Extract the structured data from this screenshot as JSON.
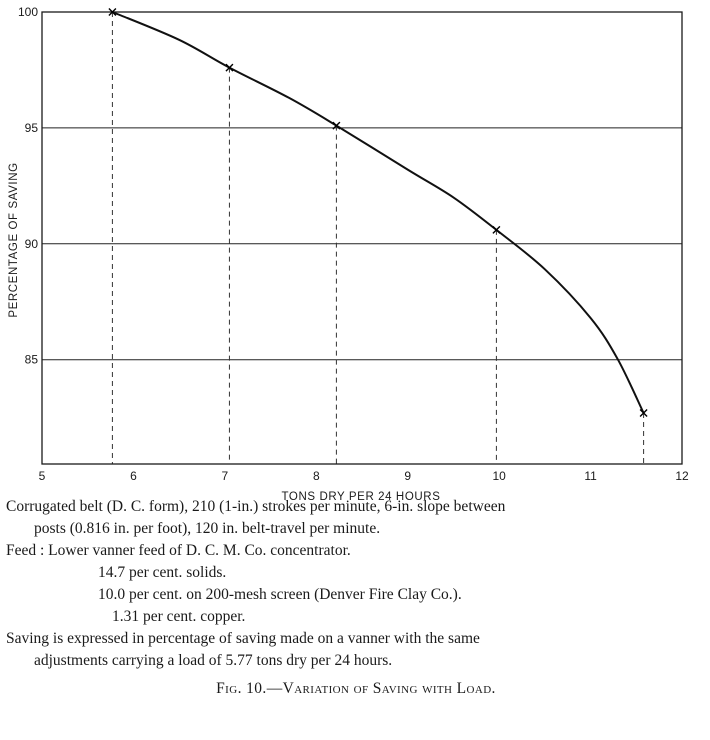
{
  "chart_data": {
    "type": "line",
    "xlabel": "TONS DRY PER 24 HOURS",
    "ylabel": "PERCENTAGE OF SAVING",
    "xlim": [
      5,
      12
    ],
    "ylim": [
      80.5,
      100
    ],
    "x_ticks": [
      "5",
      "6",
      "7",
      "8",
      "9",
      "10",
      "11",
      "12"
    ],
    "y_ticks": [
      "85",
      "90",
      "95",
      "100"
    ],
    "grid": "horizontal",
    "series": [
      {
        "markers": [
          {
            "x": 5.77,
            "y": 100
          },
          {
            "x": 7.05,
            "y": 97.6
          },
          {
            "x": 8.22,
            "y": 95.1
          },
          {
            "x": 9.97,
            "y": 90.6
          },
          {
            "x": 11.58,
            "y": 82.7
          }
        ],
        "curve": [
          {
            "x": 5.77,
            "y": 100
          },
          {
            "x": 6.5,
            "y": 98.8
          },
          {
            "x": 7.05,
            "y": 97.6
          },
          {
            "x": 7.7,
            "y": 96.3
          },
          {
            "x": 8.22,
            "y": 95.1
          },
          {
            "x": 9.0,
            "y": 93.2
          },
          {
            "x": 9.5,
            "y": 92.0
          },
          {
            "x": 9.97,
            "y": 90.6
          },
          {
            "x": 10.5,
            "y": 88.9
          },
          {
            "x": 11.0,
            "y": 86.8
          },
          {
            "x": 11.3,
            "y": 85.0
          },
          {
            "x": 11.58,
            "y": 82.7
          }
        ]
      }
    ]
  },
  "caption": {
    "line1": "Corrugated belt (D. C. form), 210 (1-in.) strokes per minute, 6-in. slope between",
    "line2": "posts (0.816 in. per foot), 120 in. belt-travel per minute.",
    "line3": "Feed : Lower vanner feed of D. C. M. Co. concentrator.",
    "line4": "14.7 per cent. solids.",
    "line5": "10.0 per cent. on 200-mesh screen (Denver Fire Clay Co.).",
    "line6": "1.31 per cent. copper.",
    "line7": "Saving is expressed in percentage of saving made on a vanner with the same",
    "line8": "adjustments carrying a load of 5.77 tons dry per 24 hours.",
    "fig_title": "Fig. 10.—Variation of Saving with Load."
  }
}
